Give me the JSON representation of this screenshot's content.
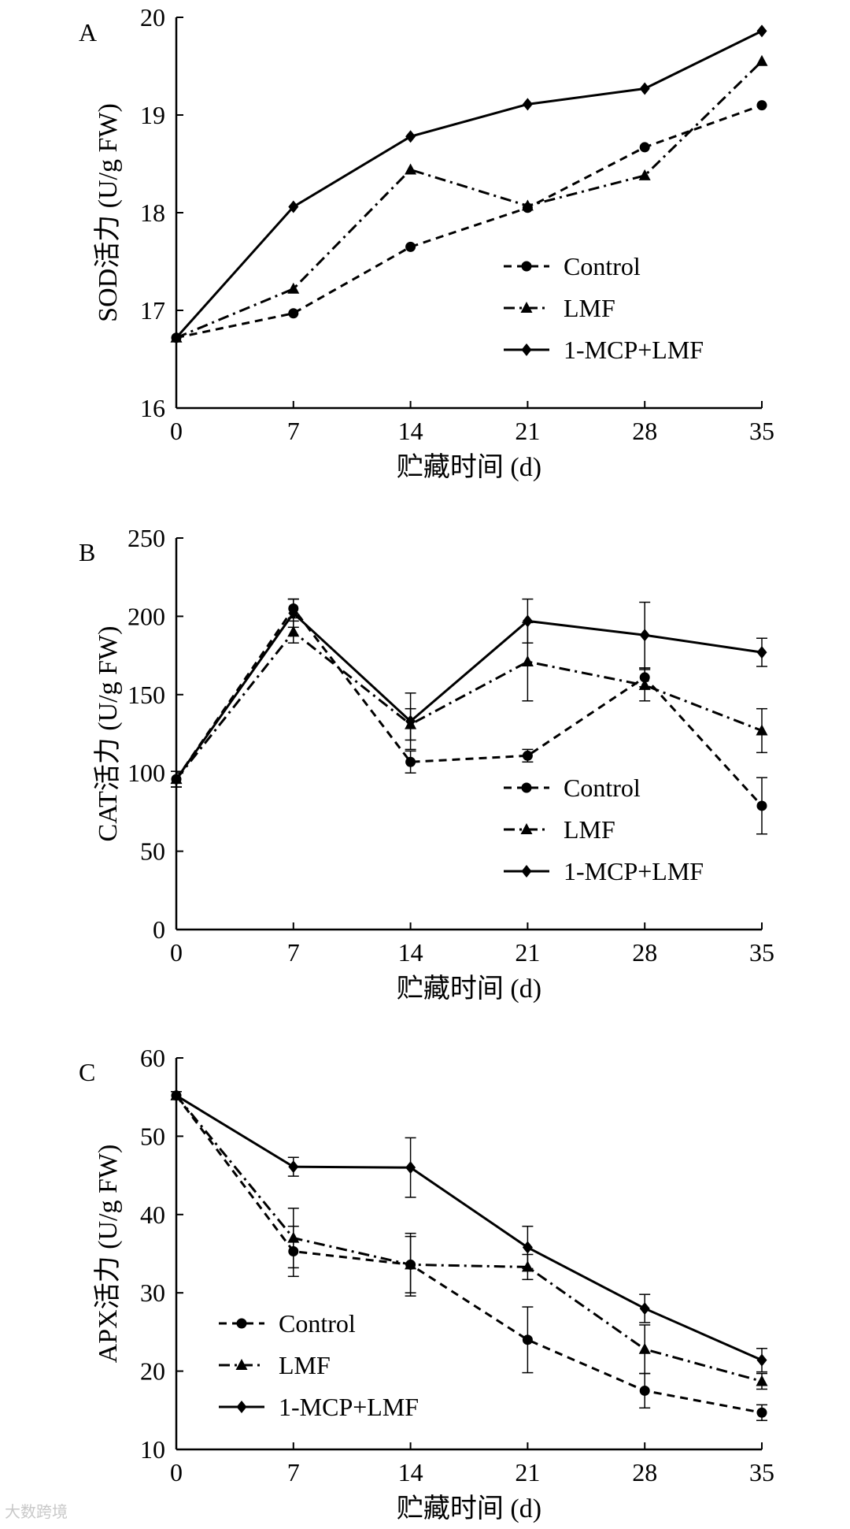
{
  "watermark": "大数跨境",
  "chart_data": [
    {
      "panel_label": "A",
      "type": "line",
      "xlabel": "贮藏时间 (d)",
      "ylabel": "SOD活力 (U/g FW)",
      "x": [
        0,
        7,
        14,
        21,
        28,
        35
      ],
      "xticks": [
        "0",
        "7",
        "14",
        "21",
        "28",
        "35"
      ],
      "ylim": [
        16,
        20
      ],
      "yticks": [
        16,
        17,
        18,
        19,
        20
      ],
      "legend_position": "center-right",
      "series": [
        {
          "name": "Control",
          "style": "dashed",
          "marker": "circle",
          "values": [
            16.72,
            16.97,
            17.65,
            18.05,
            18.67,
            19.1
          ]
        },
        {
          "name": "LMF",
          "style": "dashdot",
          "marker": "triangle",
          "values": [
            16.72,
            17.22,
            18.44,
            18.07,
            18.38,
            19.55
          ]
        },
        {
          "name": "1-MCP+LMF",
          "style": "solid",
          "marker": "diamond",
          "values": [
            16.72,
            18.06,
            18.78,
            19.11,
            19.27,
            19.86
          ]
        }
      ]
    },
    {
      "panel_label": "B",
      "type": "line",
      "xlabel": "贮藏时间 (d)",
      "ylabel": "CAT活力 (U/g  FW)",
      "x": [
        0,
        7,
        14,
        21,
        28,
        35
      ],
      "xticks": [
        "0",
        "7",
        "14",
        "21",
        "28",
        "35"
      ],
      "ylim": [
        0,
        250
      ],
      "yticks": [
        0,
        50,
        100,
        150,
        200,
        250
      ],
      "legend_position": "center-right",
      "series": [
        {
          "name": "Control",
          "style": "dashed",
          "marker": "circle",
          "values": [
            96,
            205,
            107,
            111,
            161,
            79
          ],
          "errors": [
            5,
            6,
            7,
            4,
            6,
            18
          ]
        },
        {
          "name": "LMF",
          "style": "dashdot",
          "marker": "triangle",
          "values": [
            96,
            190,
            131,
            171,
            156,
            127
          ],
          "errors": [
            5,
            7,
            10,
            25,
            10,
            14
          ]
        },
        {
          "name": "1-MCP+LMF",
          "style": "solid",
          "marker": "diamond",
          "values": [
            96,
            202,
            133,
            197,
            188,
            177
          ],
          "errors": [
            5,
            9,
            18,
            14,
            21,
            9
          ]
        }
      ]
    },
    {
      "panel_label": "C",
      "type": "line",
      "xlabel": "贮藏时间 (d)",
      "ylabel": "APX活力 (U/g  FW)",
      "x": [
        0,
        7,
        14,
        21,
        28,
        35
      ],
      "xticks": [
        "0",
        "7",
        "14",
        "21",
        "28",
        "35"
      ],
      "ylim": [
        10,
        60
      ],
      "yticks": [
        10,
        20,
        30,
        40,
        50,
        60
      ],
      "legend_position": "lower-left",
      "series": [
        {
          "name": "Control",
          "style": "dashed",
          "marker": "circle",
          "values": [
            55.2,
            35.3,
            33.6,
            24.0,
            17.5,
            14.7
          ],
          "errors": [
            0.5,
            3.2,
            4.0,
            4.2,
            2.2,
            1.0
          ]
        },
        {
          "name": "LMF",
          "style": "dashdot",
          "marker": "triangle",
          "values": [
            55.2,
            37.0,
            33.6,
            33.3,
            22.8,
            18.7
          ],
          "errors": [
            0.5,
            3.8,
            3.6,
            1.6,
            3.1,
            1.0
          ]
        },
        {
          "name": "1-MCP+LMF",
          "style": "solid",
          "marker": "diamond",
          "values": [
            55.2,
            46.1,
            46.0,
            35.8,
            28.0,
            21.4
          ],
          "errors": [
            0.5,
            1.2,
            3.8,
            2.7,
            1.8,
            1.5
          ]
        }
      ]
    }
  ]
}
